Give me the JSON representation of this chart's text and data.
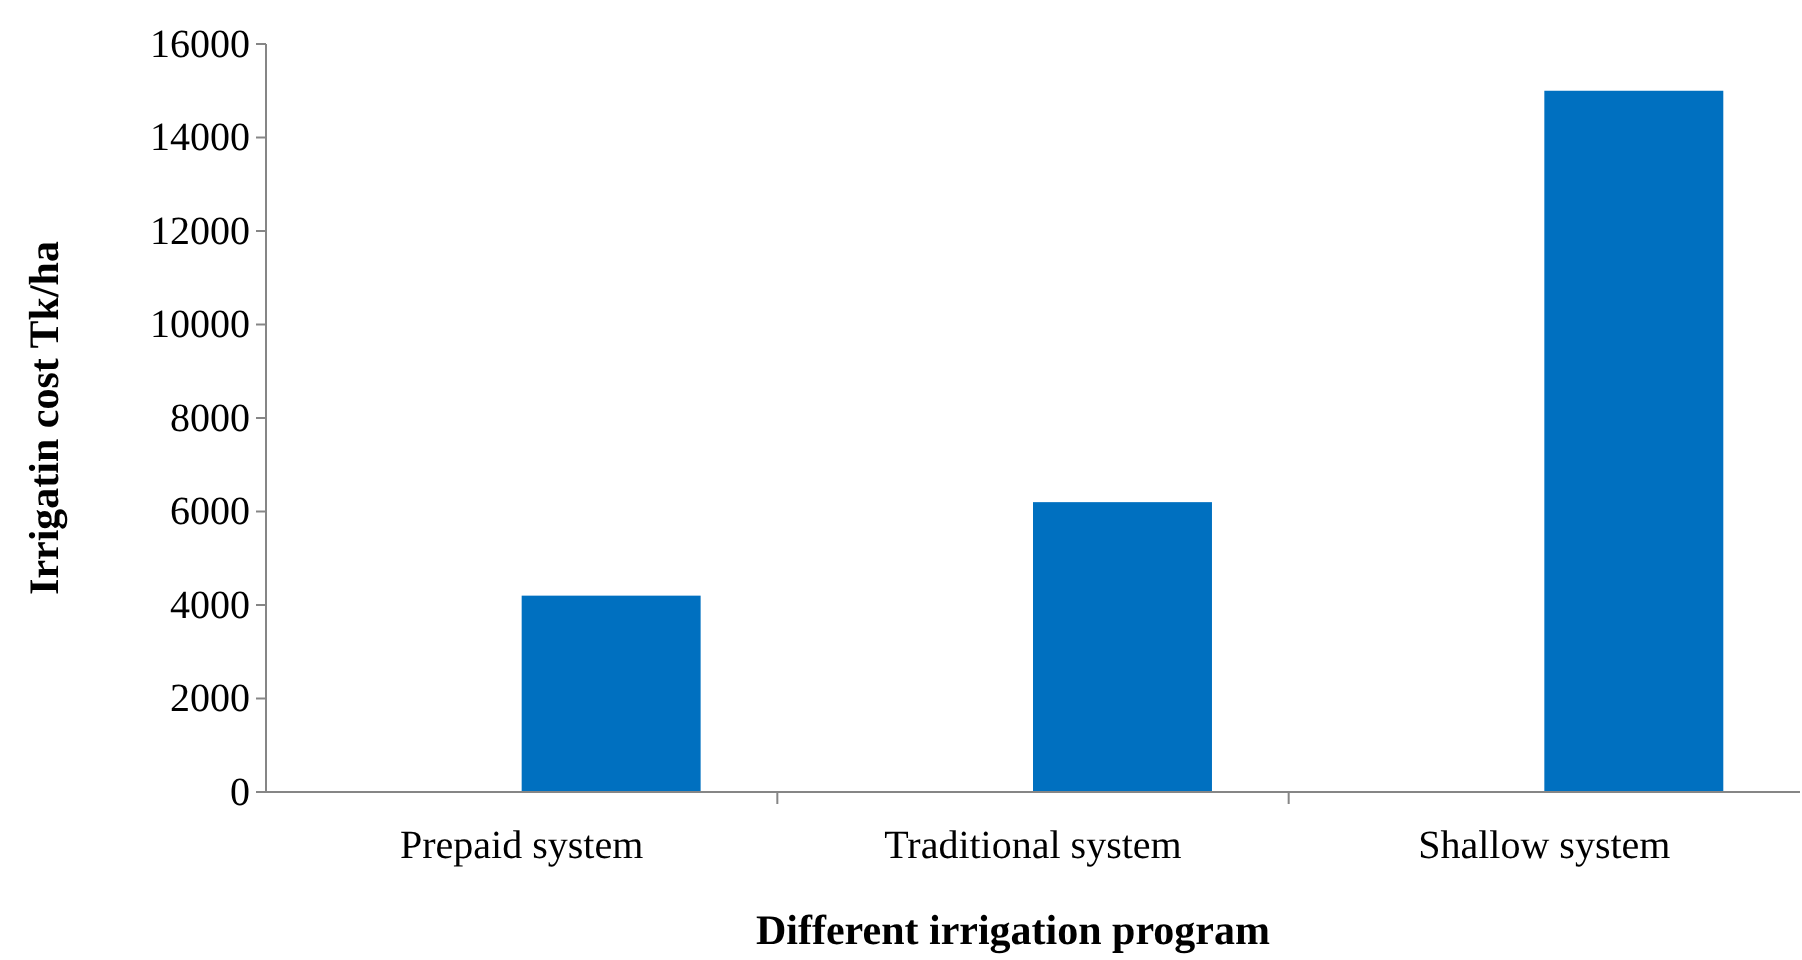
{
  "chart_data": {
    "type": "bar",
    "xlabel": "Different irrigation program",
    "ylabel": "Irrigatin cost Tk/ha",
    "categories": [
      "Prepaid system",
      "Traditional system",
      "Shallow system"
    ],
    "values": [
      4200,
      6200,
      15000
    ],
    "color": "#0070c0",
    "ylim": [
      0,
      16000
    ],
    "yticks": [
      0,
      2000,
      4000,
      6000,
      8000,
      10000,
      12000,
      14000,
      16000
    ],
    "grid": false
  }
}
